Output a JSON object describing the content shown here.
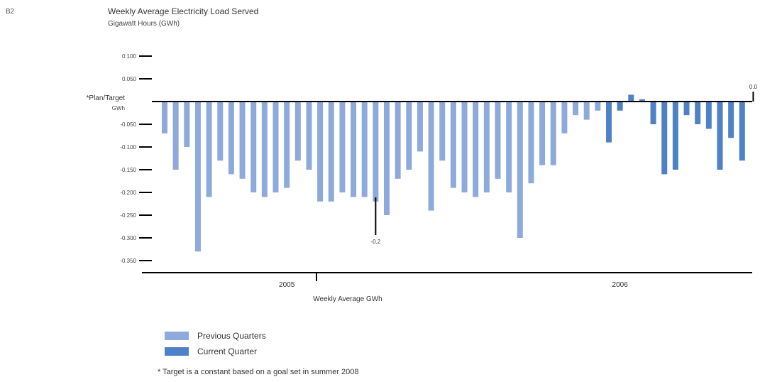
{
  "page_tag": "B2",
  "colors": {
    "previous": "#8eaadb",
    "current": "#4f81c7",
    "axis": "#000000"
  },
  "legend": {
    "previous_label": "Previous Quarters",
    "current_label": "Current Quarter"
  },
  "footnote": "* Target is a constant based on a goal set in summer 2008",
  "chart_data": {
    "type": "bar",
    "title": "Weekly Average Electricity Load Served",
    "subtitle": "Gigawatt Hours (GWh)",
    "xlabel": "Weekly Average GWh",
    "ylabel": "",
    "zero_label": [
      "Plan/Target",
      "GWh"
    ],
    "ylim": [
      -0.375,
      0.125
    ],
    "y_ticks": [
      {
        "value": 0.1,
        "label": "0.100"
      },
      {
        "value": 0.05,
        "label": "0.050"
      },
      {
        "value": -0.05,
        "label": "-0.050"
      },
      {
        "value": -0.1,
        "label": "-0.100"
      },
      {
        "value": -0.15,
        "label": "-0.150"
      },
      {
        "value": -0.2,
        "label": "-0.200"
      },
      {
        "value": -0.25,
        "label": "-0.250"
      },
      {
        "value": -0.3,
        "label": "-0.300"
      },
      {
        "value": -0.35,
        "label": "-0.350"
      }
    ],
    "x_year_labels": [
      {
        "label": "2005",
        "index": 11
      },
      {
        "label": "2006",
        "index": 41
      }
    ],
    "annotations": [
      {
        "text": "-0.2",
        "index": 19,
        "value": -0.25
      },
      {
        "text": "0.0",
        "index": 53,
        "value": 0.04
      }
    ],
    "series": [
      {
        "name": "Previous Quarters",
        "values": [
          -0.07,
          -0.15,
          -0.1,
          -0.33,
          -0.21,
          -0.13,
          -0.16,
          -0.17,
          -0.2,
          -0.21,
          -0.2,
          -0.19,
          -0.13,
          -0.15,
          -0.22,
          -0.22,
          -0.2,
          -0.21,
          -0.21,
          -0.22,
          -0.25,
          -0.17,
          -0.15,
          -0.11,
          -0.24,
          -0.13,
          -0.19,
          -0.2,
          -0.21,
          -0.2,
          -0.17,
          -0.2,
          -0.3,
          -0.18,
          -0.14,
          -0.14,
          -0.07,
          -0.03,
          -0.04,
          -0.02
        ]
      },
      {
        "name": "Current Quarter",
        "values": [
          -0.09,
          -0.02,
          0.015,
          0.005,
          -0.05,
          -0.16,
          -0.15,
          -0.03,
          -0.05,
          -0.06,
          -0.15,
          -0.08,
          -0.13
        ]
      }
    ]
  }
}
